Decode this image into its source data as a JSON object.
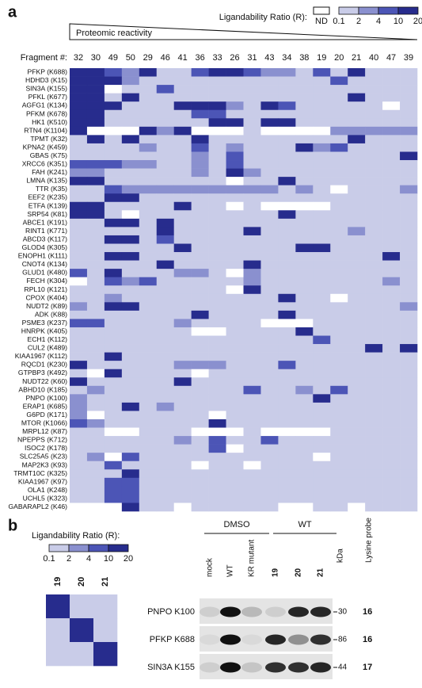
{
  "panel_a": {
    "label": "a",
    "legend_title": "Ligandability Ratio (R):",
    "nd_label": "ND",
    "scale_ticks": [
      0.1,
      2,
      4,
      10,
      20
    ],
    "colors": [
      "#ffffff",
      "#c9cce8",
      "#8a90cf",
      "#4c55b6",
      "#272c8d"
    ],
    "reactivity_label": "Proteomic reactivity",
    "fragment_label": "Fragment #:",
    "fragments": [
      32,
      30,
      49,
      50,
      29,
      46,
      41,
      36,
      33,
      26,
      31,
      43,
      34,
      38,
      19,
      20,
      21,
      40,
      47,
      39
    ],
    "proteins": [
      "PFKP (K688)",
      "HDHD3 (K15)",
      "SIN3A (K155)",
      "PFKL (K677)",
      "AGFG1 (K134)",
      "PFKM (K678)",
      "HK1 (K510)",
      "RTN4 (K1104)",
      "TPMT (K32)",
      "KPNA2 (K459)",
      "GBAS (K75)",
      "XRCC6 (K351)",
      "FAH (K241)",
      "LMNA (K135)",
      "TTR (K35)",
      "EEF2 (K235)",
      "ETFA (K139)",
      "SRP54 (K81)",
      "ABCE1 (K191)",
      "RINT1 (K771)",
      "ABCD3 (K117)",
      "GLOD4 (K305)",
      "ENOPH1 (K111)",
      "CNOT4 (K134)",
      "GLUD1 (K480)",
      "FECH (K304)",
      "RPL10 (K121)",
      "CPOX (K404)",
      "NUDT2 (K89)",
      "ADK (K88)",
      "PSME3 (K237)",
      "HNRPK (K405)",
      "ECH1 (K112)",
      "CUL2 (K489)",
      "KIAA1967 (K112)",
      "RQCD1 (K230)",
      "GTPBP3 (K492)",
      "NUDT22 (K60)",
      "ABHD10 (K185)",
      "PNPO (K100)",
      "ERAP1 (K685)",
      "G6PD (K171)",
      "MTOR (K1066)",
      "MRPL12 (K87)",
      "NPEPPS (K712)",
      "ISOC2 (K178)",
      "SLC25A5 (K23)",
      "MAP2K3 (K93)",
      "TRMT10C (K325)",
      "KIAA1967 (K97)",
      "OLA1 (K248)",
      "UCHL5 (K323)",
      "GABARAPL2 (K46)"
    ],
    "levels": [
      [
        4,
        4,
        3,
        2,
        4,
        1,
        1,
        3,
        4,
        4,
        3,
        2,
        2,
        1,
        3,
        1,
        4,
        1,
        1,
        1
      ],
      [
        4,
        4,
        4,
        2,
        1,
        1,
        1,
        1,
        1,
        1,
        1,
        1,
        1,
        1,
        1,
        3,
        1,
        1,
        1,
        1
      ],
      [
        4,
        4,
        0,
        1,
        1,
        3,
        1,
        1,
        1,
        1,
        1,
        1,
        1,
        1,
        1,
        1,
        1,
        1,
        1,
        1
      ],
      [
        4,
        4,
        1,
        4,
        1,
        1,
        1,
        1,
        1,
        1,
        1,
        1,
        1,
        1,
        1,
        1,
        4,
        1,
        1,
        1
      ],
      [
        4,
        4,
        4,
        1,
        1,
        1,
        4,
        4,
        4,
        2,
        1,
        4,
        3,
        1,
        1,
        1,
        1,
        1,
        0,
        1
      ],
      [
        4,
        4,
        1,
        1,
        1,
        1,
        1,
        3,
        3,
        1,
        1,
        1,
        1,
        1,
        1,
        1,
        1,
        1,
        1,
        1
      ],
      [
        4,
        4,
        1,
        1,
        1,
        1,
        1,
        1,
        4,
        4,
        1,
        4,
        4,
        1,
        1,
        1,
        1,
        1,
        1,
        1
      ],
      [
        4,
        0,
        0,
        0,
        4,
        2,
        4,
        0,
        0,
        0,
        1,
        0,
        0,
        0,
        0,
        2,
        2,
        2,
        2,
        2
      ],
      [
        1,
        4,
        1,
        4,
        1,
        1,
        1,
        4,
        1,
        1,
        1,
        1,
        1,
        1,
        1,
        1,
        4,
        1,
        1,
        1
      ],
      [
        1,
        1,
        1,
        1,
        2,
        1,
        1,
        3,
        1,
        2,
        1,
        1,
        1,
        4,
        2,
        3,
        1,
        1,
        1,
        1
      ],
      [
        1,
        1,
        1,
        1,
        1,
        1,
        1,
        2,
        1,
        3,
        1,
        1,
        1,
        1,
        1,
        1,
        1,
        1,
        1,
        4
      ],
      [
        3,
        3,
        3,
        2,
        2,
        1,
        1,
        2,
        1,
        3,
        1,
        1,
        1,
        1,
        1,
        1,
        1,
        1,
        1,
        1
      ],
      [
        2,
        2,
        1,
        1,
        1,
        1,
        1,
        2,
        1,
        4,
        2,
        1,
        1,
        1,
        1,
        1,
        1,
        1,
        1,
        1
      ],
      [
        4,
        4,
        1,
        1,
        1,
        1,
        1,
        1,
        1,
        0,
        1,
        1,
        4,
        1,
        1,
        1,
        1,
        1,
        1,
        1
      ],
      [
        1,
        1,
        3,
        2,
        2,
        2,
        2,
        2,
        2,
        2,
        2,
        2,
        1,
        2,
        1,
        0,
        1,
        1,
        1,
        2
      ],
      [
        1,
        1,
        4,
        4,
        1,
        1,
        1,
        1,
        1,
        1,
        1,
        1,
        1,
        1,
        1,
        1,
        1,
        1,
        1,
        1
      ],
      [
        4,
        4,
        1,
        1,
        1,
        1,
        4,
        1,
        1,
        0,
        1,
        0,
        0,
        0,
        0,
        1,
        1,
        1,
        1,
        1
      ],
      [
        4,
        4,
        1,
        0,
        1,
        1,
        1,
        1,
        1,
        1,
        1,
        1,
        4,
        1,
        1,
        1,
        1,
        1,
        1,
        1
      ],
      [
        1,
        1,
        4,
        4,
        1,
        4,
        1,
        1,
        1,
        1,
        1,
        1,
        1,
        1,
        1,
        1,
        1,
        1,
        1,
        1
      ],
      [
        1,
        1,
        1,
        1,
        1,
        4,
        1,
        1,
        1,
        1,
        4,
        1,
        1,
        1,
        1,
        1,
        2,
        1,
        1,
        1
      ],
      [
        1,
        1,
        4,
        4,
        1,
        3,
        1,
        1,
        1,
        1,
        1,
        1,
        1,
        1,
        1,
        1,
        1,
        1,
        1,
        1
      ],
      [
        1,
        1,
        1,
        1,
        1,
        1,
        4,
        1,
        1,
        1,
        1,
        1,
        1,
        4,
        4,
        1,
        1,
        1,
        1,
        1
      ],
      [
        1,
        1,
        4,
        4,
        1,
        1,
        1,
        1,
        1,
        1,
        1,
        1,
        1,
        1,
        1,
        1,
        1,
        1,
        4,
        1
      ],
      [
        1,
        1,
        1,
        1,
        1,
        4,
        1,
        1,
        1,
        1,
        4,
        1,
        1,
        1,
        1,
        1,
        1,
        1,
        1,
        1
      ],
      [
        3,
        1,
        4,
        1,
        1,
        1,
        2,
        2,
        1,
        0,
        2,
        1,
        1,
        1,
        1,
        1,
        1,
        1,
        1,
        1
      ],
      [
        0,
        1,
        3,
        2,
        3,
        1,
        1,
        1,
        1,
        1,
        2,
        1,
        1,
        1,
        1,
        1,
        1,
        1,
        2,
        1
      ],
      [
        1,
        1,
        1,
        1,
        1,
        1,
        1,
        1,
        1,
        0,
        4,
        1,
        1,
        1,
        1,
        1,
        1,
        1,
        1,
        1
      ],
      [
        1,
        1,
        2,
        1,
        1,
        1,
        1,
        1,
        1,
        1,
        1,
        1,
        4,
        1,
        1,
        0,
        1,
        1,
        1,
        1
      ],
      [
        2,
        1,
        4,
        4,
        1,
        1,
        1,
        1,
        1,
        1,
        1,
        1,
        1,
        1,
        1,
        1,
        1,
        1,
        1,
        2
      ],
      [
        1,
        1,
        1,
        1,
        1,
        1,
        1,
        4,
        1,
        1,
        1,
        1,
        4,
        1,
        1,
        1,
        1,
        1,
        1,
        1
      ],
      [
        3,
        3,
        1,
        1,
        1,
        1,
        2,
        1,
        1,
        1,
        1,
        0,
        0,
        0,
        1,
        1,
        1,
        1,
        1,
        1
      ],
      [
        1,
        1,
        1,
        1,
        1,
        1,
        1,
        0,
        0,
        1,
        1,
        1,
        1,
        4,
        1,
        1,
        1,
        1,
        1,
        1
      ],
      [
        1,
        1,
        1,
        1,
        1,
        1,
        1,
        1,
        1,
        1,
        1,
        1,
        1,
        1,
        3,
        1,
        1,
        1,
        1,
        1
      ],
      [
        1,
        1,
        1,
        1,
        1,
        1,
        1,
        1,
        1,
        1,
        1,
        1,
        1,
        1,
        1,
        1,
        1,
        4,
        1,
        4
      ],
      [
        1,
        1,
        4,
        1,
        1,
        1,
        1,
        1,
        1,
        1,
        1,
        1,
        1,
        1,
        1,
        1,
        1,
        1,
        1,
        1
      ],
      [
        4,
        1,
        1,
        1,
        1,
        1,
        2,
        2,
        2,
        1,
        1,
        1,
        3,
        1,
        1,
        1,
        1,
        1,
        1,
        1
      ],
      [
        1,
        0,
        4,
        1,
        1,
        1,
        1,
        0,
        1,
        1,
        1,
        1,
        1,
        1,
        1,
        1,
        1,
        1,
        1,
        1
      ],
      [
        4,
        1,
        1,
        1,
        1,
        1,
        4,
        1,
        1,
        1,
        1,
        1,
        1,
        1,
        1,
        1,
        1,
        1,
        1,
        1
      ],
      [
        1,
        2,
        1,
        1,
        1,
        1,
        1,
        1,
        1,
        1,
        3,
        1,
        1,
        2,
        1,
        3,
        1,
        1,
        1,
        1
      ],
      [
        2,
        1,
        1,
        1,
        1,
        1,
        1,
        1,
        1,
        1,
        1,
        1,
        1,
        1,
        4,
        1,
        1,
        1,
        1,
        1
      ],
      [
        2,
        1,
        1,
        4,
        1,
        2,
        1,
        1,
        1,
        1,
        1,
        1,
        1,
        1,
        1,
        1,
        1,
        1,
        1,
        1
      ],
      [
        2,
        0,
        1,
        1,
        1,
        1,
        1,
        1,
        0,
        1,
        1,
        1,
        1,
        1,
        1,
        1,
        1,
        1,
        1,
        1
      ],
      [
        3,
        2,
        1,
        1,
        1,
        1,
        1,
        1,
        4,
        1,
        1,
        1,
        1,
        1,
        1,
        1,
        1,
        1,
        1,
        1
      ],
      [
        1,
        1,
        0,
        0,
        1,
        1,
        1,
        0,
        0,
        0,
        1,
        0,
        0,
        0,
        0,
        1,
        1,
        1,
        1,
        1
      ],
      [
        1,
        1,
        1,
        1,
        1,
        1,
        2,
        1,
        3,
        1,
        1,
        3,
        1,
        1,
        1,
        1,
        1,
        1,
        1,
        1
      ],
      [
        1,
        1,
        1,
        1,
        1,
        1,
        1,
        1,
        3,
        0,
        1,
        1,
        1,
        1,
        1,
        1,
        1,
        1,
        1,
        1
      ],
      [
        1,
        2,
        0,
        3,
        1,
        1,
        1,
        1,
        1,
        1,
        1,
        1,
        1,
        1,
        0,
        1,
        1,
        1,
        1,
        1
      ],
      [
        1,
        1,
        3,
        1,
        1,
        1,
        1,
        0,
        1,
        1,
        0,
        1,
        1,
        1,
        1,
        1,
        1,
        1,
        1,
        1
      ],
      [
        1,
        1,
        1,
        4,
        1,
        1,
        1,
        1,
        1,
        1,
        1,
        1,
        1,
        1,
        1,
        1,
        1,
        1,
        1,
        1
      ],
      [
        1,
        1,
        3,
        3,
        1,
        1,
        1,
        1,
        1,
        1,
        1,
        1,
        1,
        1,
        1,
        1,
        1,
        1,
        1,
        1
      ],
      [
        1,
        1,
        3,
        3,
        1,
        1,
        1,
        1,
        1,
        1,
        1,
        1,
        1,
        1,
        1,
        1,
        1,
        1,
        1,
        1
      ],
      [
        1,
        1,
        3,
        3,
        1,
        1,
        1,
        1,
        1,
        1,
        1,
        1,
        1,
        1,
        1,
        1,
        1,
        1,
        1,
        1
      ],
      [
        0,
        0,
        0,
        4,
        1,
        1,
        0,
        1,
        1,
        1,
        1,
        1,
        0,
        0,
        1,
        1,
        0,
        1,
        1,
        1
      ]
    ]
  },
  "panel_b": {
    "label": "b",
    "legend_title": "Ligandability Ratio (R):",
    "scale_ticks": [
      0.1,
      2,
      4,
      10,
      20
    ],
    "fragments": [
      19,
      20,
      21
    ],
    "levels": [
      [
        4,
        1,
        1
      ],
      [
        1,
        4,
        1
      ],
      [
        1,
        1,
        4
      ]
    ],
    "groups": [
      "DMSO",
      "WT"
    ],
    "lanes": [
      "mock",
      "WT",
      "KR mutant",
      "19",
      "20",
      "21"
    ],
    "kda_label": "kDa",
    "probe_label": "Lysine probe",
    "blots": [
      {
        "name": "PNPO K100",
        "kda": 30,
        "probe": 16,
        "bands": [
          0.1,
          1,
          0.2,
          0.1,
          0.9,
          0.9
        ]
      },
      {
        "name": "PFKP K688",
        "kda": 86,
        "probe": 16,
        "bands": [
          0.05,
          1,
          0.05,
          0.9,
          0.4,
          0.85
        ]
      },
      {
        "name": "SIN3A K155",
        "kda": 44,
        "probe": 17,
        "bands": [
          0.1,
          1,
          0.15,
          0.85,
          0.85,
          0.9
        ]
      }
    ]
  }
}
